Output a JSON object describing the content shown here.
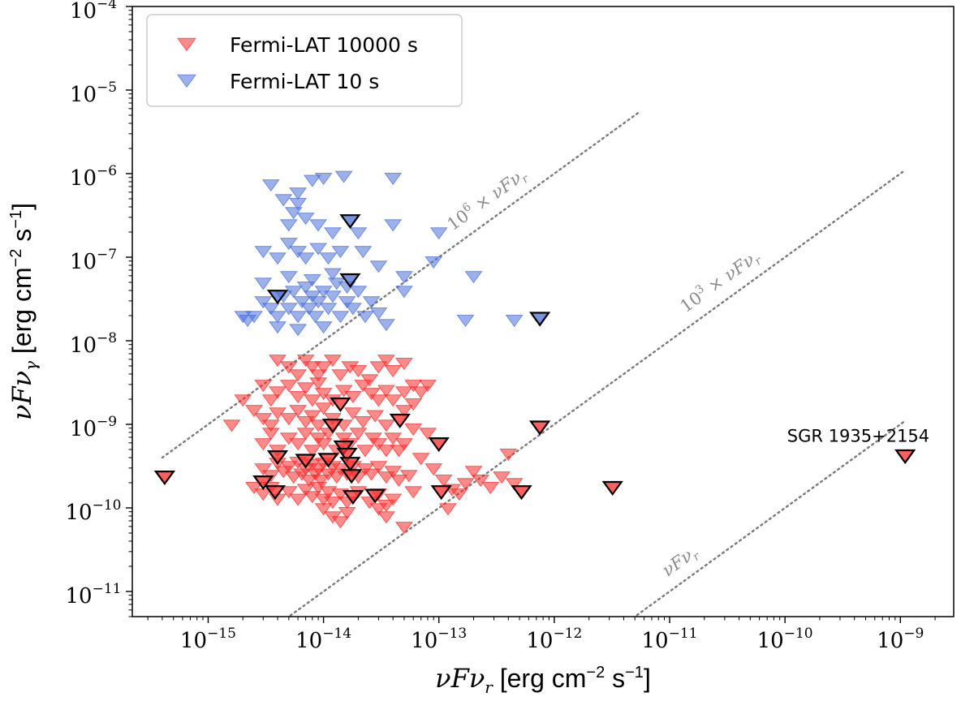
{
  "chart_data": {
    "type": "scatter",
    "marker": "down-triangle",
    "xscale": "log",
    "yscale": "log",
    "xlim": [
      2.2e-16,
      2.9e-09
    ],
    "ylim": [
      5e-12,
      0.0001
    ],
    "xlabel": "νFν_r [erg cm^-2 s^-1]",
    "ylabel": "νFν_γ [erg cm^-2 s^-1]",
    "xlabel_parts": {
      "math": "νFν",
      "sub": "r",
      "text": " [erg cm",
      "exp1": "−2",
      "mid": " s",
      "exp2": "−1",
      "end": "]"
    },
    "ylabel_parts": {
      "math": "νFν",
      "sub": "γ",
      "text": " [erg cm",
      "exp1": "−2",
      "mid": " s",
      "exp2": "−1",
      "end": "]"
    },
    "x_ticks": [
      {
        "value": 1e-15,
        "base": "10",
        "exp": "−15"
      },
      {
        "value": 1e-14,
        "base": "10",
        "exp": "−14"
      },
      {
        "value": 1e-13,
        "base": "10",
        "exp": "−13"
      },
      {
        "value": 1e-12,
        "base": "10",
        "exp": "−12"
      },
      {
        "value": 1e-11,
        "base": "10",
        "exp": "−11"
      },
      {
        "value": 1e-10,
        "base": "10",
        "exp": "−10"
      },
      {
        "value": 1e-09,
        "base": "10",
        "exp": "−9"
      }
    ],
    "y_ticks": [
      {
        "value": 1e-11,
        "base": "10",
        "exp": "−11"
      },
      {
        "value": 1e-10,
        "base": "10",
        "exp": "−10"
      },
      {
        "value": 1e-09,
        "base": "10",
        "exp": "−9"
      },
      {
        "value": 1e-08,
        "base": "10",
        "exp": "−8"
      },
      {
        "value": 1e-07,
        "base": "10",
        "exp": "−7"
      },
      {
        "value": 1e-06,
        "base": "10",
        "exp": "−6"
      },
      {
        "value": 1e-05,
        "base": "10",
        "exp": "−5"
      },
      {
        "value": 0.0001,
        "base": "10",
        "exp": "−4"
      }
    ],
    "legend": [
      {
        "label": "Fermi-LAT 10000 s",
        "color": "#ff2a2a"
      },
      {
        "label": "Fermi-LAT 10 s",
        "color": "#4a6fd8"
      }
    ],
    "reference_lines": [
      {
        "label": "10^6 × νFν_r",
        "label_base": "10",
        "label_exp": "6",
        "label_rest": " × νFν",
        "label_sub": "r",
        "factor": 1000000.0,
        "x_range": [
          4e-16,
          5.5e-12
        ]
      },
      {
        "label": "10^3 × νFν_r",
        "label_base": "10",
        "label_exp": "3",
        "label_rest": " × νFν",
        "label_sub": "r",
        "factor": 1000.0,
        "x_range": [
          4e-15,
          1.1e-09
        ]
      },
      {
        "label": "νFν_r",
        "label_base": "",
        "label_exp": "",
        "label_rest": "νFν",
        "label_sub": "r",
        "factor": 1,
        "x_range": [
          4.4e-12,
          1.1e-09
        ]
      }
    ],
    "annotation": {
      "text": "SGR 1935+2154",
      "x": 1.1e-09,
      "y": 4.5e-10
    },
    "series": [
      {
        "name": "Fermi-LAT 10 s",
        "color": "#4a6fd8",
        "points": [
          [
            3.5e-15,
            7.5e-07
          ],
          [
            4.5e-15,
            5e-07
          ],
          [
            5.5e-15,
            3.5e-07
          ],
          [
            6e-15,
            6e-07
          ],
          [
            8e-15,
            8.5e-07
          ],
          [
            1e-14,
            9e-07
          ],
          [
            1.5e-14,
            9.5e-07
          ],
          [
            4e-14,
            9e-07
          ],
          [
            5e-15,
            2.5e-07
          ],
          [
            6e-15,
            4.5e-07
          ],
          [
            7e-15,
            3e-07
          ],
          [
            9e-15,
            2.5e-07
          ],
          [
            1.2e-14,
            2e-07
          ],
          [
            2e-14,
            2e-07
          ],
          [
            4e-14,
            2.5e-07
          ],
          [
            3e-15,
            1.2e-07
          ],
          [
            4e-15,
            1e-07
          ],
          [
            5e-15,
            1.5e-07
          ],
          [
            6e-15,
            1.2e-07
          ],
          [
            7e-15,
            1e-07
          ],
          [
            9e-15,
            1.3e-07
          ],
          [
            1.1e-14,
            1e-07
          ],
          [
            1.4e-14,
            1.2e-07
          ],
          [
            2.2e-14,
            1.2e-07
          ],
          [
            3e-14,
            8e-08
          ],
          [
            5e-14,
            6e-08
          ],
          [
            1e-13,
            2e-07
          ],
          [
            2e-13,
            6e-08
          ],
          [
            9e-14,
            9e-08
          ],
          [
            5e-14,
            4e-08
          ],
          [
            2.5e-15,
            2e-08
          ],
          [
            3e-15,
            3e-08
          ],
          [
            3.5e-15,
            2.5e-08
          ],
          [
            4e-15,
            2e-08
          ],
          [
            4.5e-15,
            3.5e-08
          ],
          [
            5e-15,
            2.5e-08
          ],
          [
            5.5e-15,
            4e-08
          ],
          [
            6e-15,
            2e-08
          ],
          [
            6.5e-15,
            3e-08
          ],
          [
            7e-15,
            4.5e-08
          ],
          [
            7.5e-15,
            2.5e-08
          ],
          [
            8e-15,
            3.5e-08
          ],
          [
            8.5e-15,
            2e-08
          ],
          [
            9e-15,
            3e-08
          ],
          [
            1e-14,
            4e-08
          ],
          [
            1.1e-14,
            2.5e-08
          ],
          [
            1.2e-14,
            3.5e-08
          ],
          [
            1.3e-14,
            5e-08
          ],
          [
            1.4e-14,
            2e-08
          ],
          [
            1.6e-14,
            3e-08
          ],
          [
            1.8e-14,
            2.5e-08
          ],
          [
            2e-14,
            4e-08
          ],
          [
            2.3e-14,
            2e-08
          ],
          [
            2.6e-14,
            3e-08
          ],
          [
            3e-14,
            2.2e-08
          ],
          [
            3.5e-14,
            1.6e-08
          ],
          [
            2e-15,
            2e-08
          ],
          [
            2.2e-15,
            1.8e-08
          ],
          [
            4e-15,
            1.5e-08
          ],
          [
            6e-15,
            1.4e-08
          ],
          [
            1e-14,
            1.5e-08
          ],
          [
            1.7e-13,
            1.8e-08
          ],
          [
            4.5e-13,
            1.8e-08
          ],
          [
            3e-15,
            5e-08
          ],
          [
            5e-15,
            6e-08
          ],
          [
            8e-15,
            5.5e-08
          ],
          [
            1.2e-14,
            6.5e-08
          ],
          [
            1.6e-14,
            4.5e-08
          ]
        ]
      },
      {
        "name": "Fermi-LAT 10000 s",
        "color": "#ff2a2a",
        "points": [
          [
            4e-15,
            6e-09
          ],
          [
            5e-15,
            5e-09
          ],
          [
            6e-15,
            4e-09
          ],
          [
            7e-15,
            6e-09
          ],
          [
            8e-15,
            5e-09
          ],
          [
            9e-15,
            4e-09
          ],
          [
            1e-14,
            5e-09
          ],
          [
            1.2e-14,
            6e-09
          ],
          [
            1.4e-14,
            4e-09
          ],
          [
            1.7e-14,
            5e-09
          ],
          [
            2e-14,
            4.5e-09
          ],
          [
            2.5e-14,
            3.5e-09
          ],
          [
            3e-14,
            5e-09
          ],
          [
            3.5e-14,
            6e-09
          ],
          [
            4e-14,
            4.5e-09
          ],
          [
            5e-14,
            5.5e-09
          ],
          [
            6e-14,
            3e-09
          ],
          [
            7e-14,
            2.5e-09
          ],
          [
            8e-14,
            3e-09
          ],
          [
            3e-15,
            3e-09
          ],
          [
            3.5e-15,
            2e-09
          ],
          [
            4e-15,
            2.5e-09
          ],
          [
            5e-15,
            3e-09
          ],
          [
            6e-15,
            2.2e-09
          ],
          [
            7e-15,
            2.8e-09
          ],
          [
            8e-15,
            2e-09
          ],
          [
            9e-15,
            3.2e-09
          ],
          [
            1e-14,
            2.4e-09
          ],
          [
            1.2e-14,
            2e-09
          ],
          [
            1.5e-14,
            2.6e-09
          ],
          [
            1.8e-14,
            2.2e-09
          ],
          [
            2.2e-14,
            3e-09
          ],
          [
            2.6e-14,
            2.4e-09
          ],
          [
            3e-14,
            2e-09
          ],
          [
            3.5e-14,
            2.6e-09
          ],
          [
            4e-14,
            2e-09
          ],
          [
            5e-14,
            2.5e-09
          ],
          [
            6e-14,
            1.8e-09
          ],
          [
            2e-15,
            2e-09
          ],
          [
            2.5e-15,
            1.5e-09
          ],
          [
            1.6e-15,
            1e-09
          ],
          [
            3e-15,
            1.2e-09
          ],
          [
            3.5e-15,
            1e-09
          ],
          [
            4e-15,
            1.4e-09
          ],
          [
            5e-15,
            1.2e-09
          ],
          [
            6e-15,
            1.5e-09
          ],
          [
            7e-15,
            1.1e-09
          ],
          [
            8e-15,
            1.3e-09
          ],
          [
            9e-15,
            1e-09
          ],
          [
            1e-14,
            1.6e-09
          ],
          [
            1.2e-14,
            1.2e-09
          ],
          [
            1.5e-14,
            1e-09
          ],
          [
            1.8e-14,
            1.4e-09
          ],
          [
            2.2e-14,
            1.1e-09
          ],
          [
            2.8e-14,
            1.3e-09
          ],
          [
            3.5e-14,
            1e-09
          ],
          [
            5e-14,
            1.5e-09
          ],
          [
            3e-15,
            6e-10
          ],
          [
            3.5e-15,
            8e-10
          ],
          [
            4e-15,
            5e-10
          ],
          [
            5e-15,
            7e-10
          ],
          [
            6e-15,
            6e-10
          ],
          [
            7e-15,
            8e-10
          ],
          [
            8e-15,
            5e-10
          ],
          [
            9e-15,
            7e-10
          ],
          [
            1e-14,
            6e-10
          ],
          [
            1.1e-14,
            8e-10
          ],
          [
            1.3e-14,
            5e-10
          ],
          [
            1.5e-14,
            7e-10
          ],
          [
            1.7e-14,
            6e-10
          ],
          [
            2e-14,
            8e-10
          ],
          [
            2.3e-14,
            5e-10
          ],
          [
            2.7e-14,
            7e-10
          ],
          [
            3e-14,
            6e-10
          ],
          [
            3.5e-14,
            5e-10
          ],
          [
            4e-14,
            7e-10
          ],
          [
            4.5e-14,
            5e-10
          ],
          [
            5e-14,
            6e-10
          ],
          [
            3e-15,
            3e-10
          ],
          [
            3.5e-15,
            2.5e-10
          ],
          [
            4e-15,
            3.5e-10
          ],
          [
            4.5e-15,
            2.8e-10
          ],
          [
            5e-15,
            3.2e-10
          ],
          [
            5.5e-15,
            2.4e-10
          ],
          [
            6e-15,
            3.6e-10
          ],
          [
            6.5e-15,
            2.6e-10
          ],
          [
            7e-15,
            3e-10
          ],
          [
            7.5e-15,
            2.2e-10
          ],
          [
            8e-15,
            3.4e-10
          ],
          [
            8.5e-15,
            2.6e-10
          ],
          [
            9e-15,
            3e-10
          ],
          [
            9.5e-15,
            2.2e-10
          ],
          [
            1e-14,
            3.5e-10
          ],
          [
            1.1e-14,
            2.6e-10
          ],
          [
            1.2e-14,
            3.2e-10
          ],
          [
            1.3e-14,
            2.4e-10
          ],
          [
            1.4e-14,
            3e-10
          ],
          [
            1.6e-14,
            2.6e-10
          ],
          [
            1.8e-14,
            3.2e-10
          ],
          [
            2e-14,
            2.4e-10
          ],
          [
            2.3e-14,
            3e-10
          ],
          [
            2.6e-14,
            2.6e-10
          ],
          [
            3e-14,
            3.2e-10
          ],
          [
            3.5e-14,
            2.4e-10
          ],
          [
            4e-14,
            2.8e-10
          ],
          [
            4.5e-14,
            2.2e-10
          ],
          [
            2.5e-15,
            1.8e-10
          ],
          [
            3e-15,
            1.5e-10
          ],
          [
            3.5e-15,
            1.8e-10
          ],
          [
            4e-15,
            1.3e-10
          ],
          [
            5e-15,
            1.6e-10
          ],
          [
            6e-15,
            1.3e-10
          ],
          [
            7e-15,
            1.7e-10
          ],
          [
            8e-15,
            1.4e-10
          ],
          [
            9e-15,
            1.8e-10
          ],
          [
            1e-14,
            1.3e-10
          ],
          [
            1.1e-14,
            1.6e-10
          ],
          [
            1.2e-14,
            1.2e-10
          ],
          [
            1.4e-14,
            1.5e-10
          ],
          [
            1.6e-14,
            1.2e-10
          ],
          [
            2e-14,
            1.6e-10
          ],
          [
            2.5e-14,
            1.2e-10
          ],
          [
            3e-14,
            1.5e-10
          ],
          [
            3.5e-14,
            1.1e-10
          ],
          [
            4e-14,
            1.3e-10
          ],
          [
            1e-14,
            1e-10
          ],
          [
            1.2e-14,
            8e-11
          ],
          [
            1.4e-14,
            7e-11
          ],
          [
            1.6e-14,
            9e-11
          ],
          [
            3e-14,
            1e-10
          ],
          [
            3.5e-14,
            8e-11
          ],
          [
            5e-14,
            6e-11
          ],
          [
            5.5e-14,
            2.5e-10
          ],
          [
            7e-14,
            4e-10
          ],
          [
            9e-14,
            3e-10
          ],
          [
            1.1e-13,
            2.2e-10
          ],
          [
            1.3e-13,
            1.7e-10
          ],
          [
            1.5e-13,
            1.5e-10
          ],
          [
            1.7e-13,
            2e-10
          ],
          [
            2e-13,
            2.8e-10
          ],
          [
            2.3e-13,
            2.2e-10
          ],
          [
            2.8e-13,
            1.8e-10
          ],
          [
            3.5e-13,
            2.4e-10
          ],
          [
            4e-13,
            4.5e-10
          ],
          [
            4.5e-13,
            2e-10
          ],
          [
            6e-14,
            9e-10
          ],
          [
            8e-14,
            8e-10
          ],
          [
            1.2e-13,
            1e-10
          ],
          [
            6e-14,
            1.6e-10
          ]
        ]
      }
    ],
    "outlined": [
      {
        "series": "Fermi-LAT 10 s",
        "points": [
          [
            4e-15,
            3.5e-08
          ],
          [
            1.7e-14,
            2.8e-07
          ],
          [
            1.7e-14,
            5.5e-08
          ],
          [
            7.5e-13,
            1.9e-08
          ]
        ]
      },
      {
        "series": "Fermi-LAT 10000 s",
        "points": [
          [
            4.2e-16,
            2.4e-10
          ],
          [
            3e-15,
            2.1e-10
          ],
          [
            3.8e-15,
            1.6e-10
          ],
          [
            4e-15,
            4.2e-10
          ],
          [
            7e-15,
            3.8e-10
          ],
          [
            1.1e-14,
            3.9e-10
          ],
          [
            1.2e-14,
            1e-09
          ],
          [
            1.4e-14,
            1.8e-09
          ],
          [
            1.5e-14,
            5.5e-10
          ],
          [
            1.6e-14,
            4.5e-10
          ],
          [
            1.7e-14,
            3.5e-10
          ],
          [
            1.75e-14,
            2.5e-10
          ],
          [
            1.8e-14,
            1.4e-10
          ],
          [
            2.8e-14,
            1.45e-10
          ],
          [
            4.6e-14,
            1.15e-09
          ],
          [
            1e-13,
            6e-10
          ],
          [
            1.05e-13,
            1.6e-10
          ],
          [
            5.2e-13,
            1.6e-10
          ],
          [
            7.5e-13,
            9.5e-10
          ],
          [
            3.2e-12,
            1.8e-10
          ],
          [
            1.1e-09,
            4.3e-10
          ]
        ]
      }
    ]
  }
}
